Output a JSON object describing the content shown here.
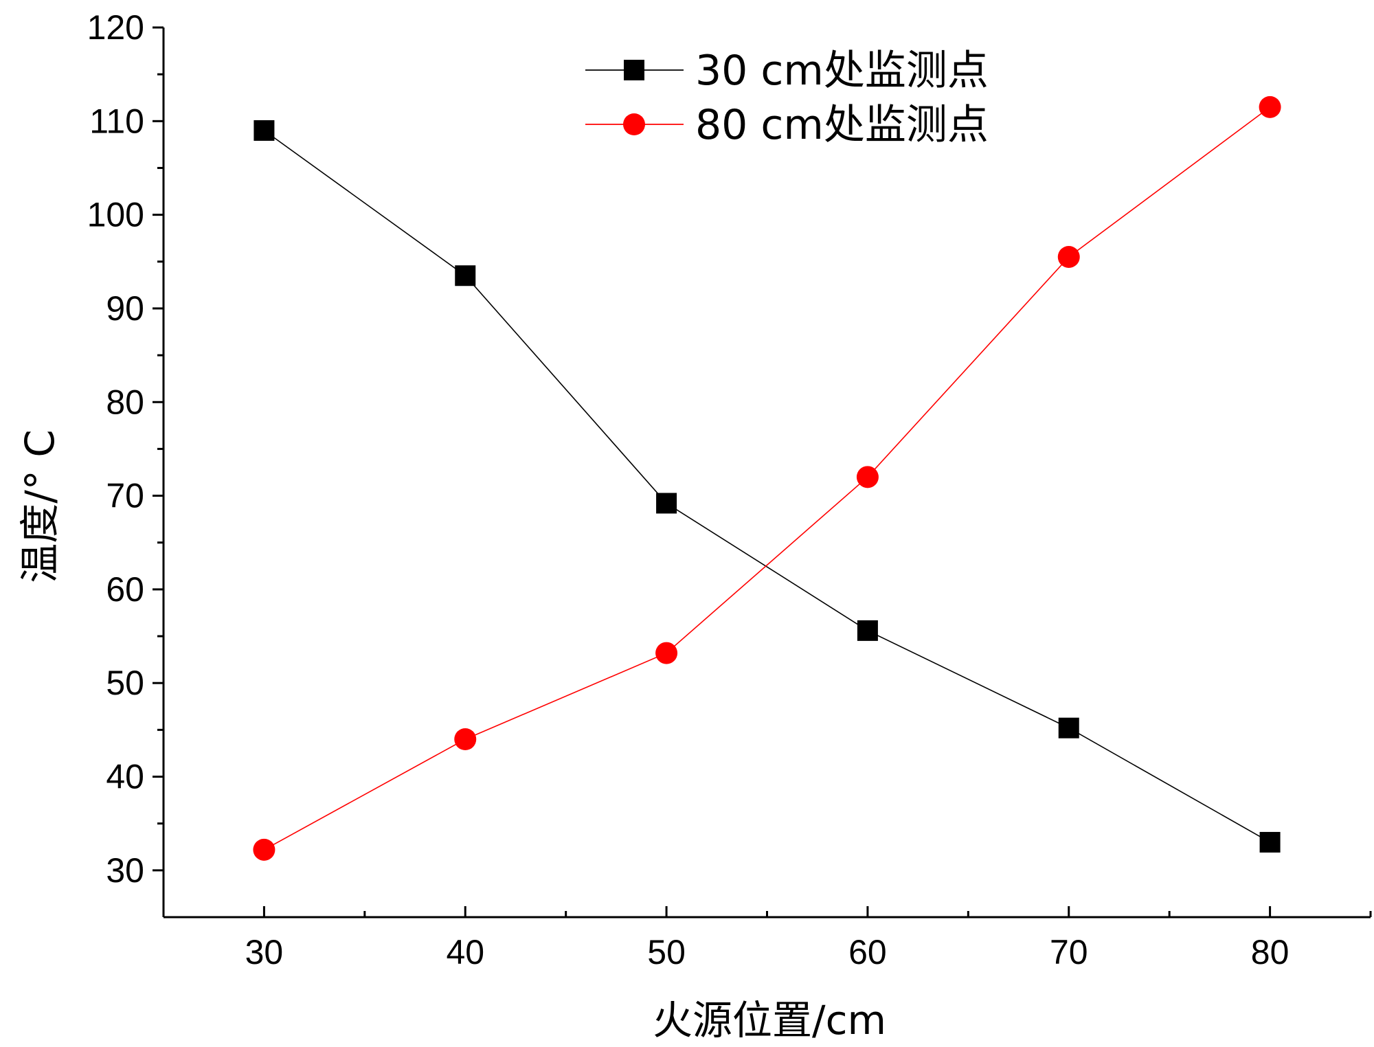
{
  "chart_data": {
    "type": "line",
    "xlabel": "火源位置/cm",
    "ylabel": "温度/° C",
    "xlim": [
      25,
      85
    ],
    "ylim": [
      25,
      120
    ],
    "x_ticks": [
      30,
      40,
      50,
      60,
      70,
      80
    ],
    "y_ticks": [
      30,
      40,
      50,
      60,
      70,
      80,
      90,
      100,
      110,
      120
    ],
    "grid": false,
    "legend_position": "top-center",
    "series": [
      {
        "name": "30 cm处监测点",
        "color": "#000000",
        "marker": "square",
        "x": [
          30,
          40,
          50,
          60,
          70,
          80
        ],
        "y": [
          109,
          93.5,
          69.2,
          55.6,
          45.2,
          33
        ]
      },
      {
        "name": "80 cm处监测点",
        "color": "#ff0000",
        "marker": "circle",
        "x": [
          30,
          40,
          50,
          60,
          70,
          80
        ],
        "y": [
          32.2,
          44,
          53.2,
          72,
          95.5,
          111.5
        ]
      }
    ]
  }
}
